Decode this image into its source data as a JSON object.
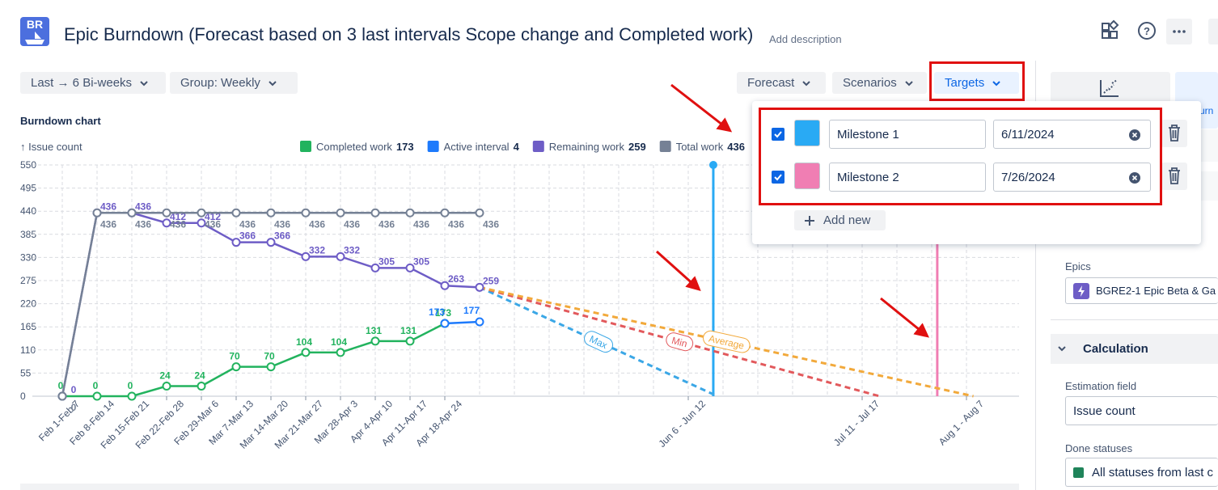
{
  "header": {
    "logo": "BR",
    "title": "Epic Burndown (Forecast based on 3 last intervals Scope change and Completed work)",
    "add_description": "Add description"
  },
  "toolbar": {
    "range": "Last → 6 Bi-weeks",
    "group": "Group: Weekly",
    "forecast": "Forecast",
    "scenarios": "Scenarios",
    "targets": "Targets"
  },
  "chart_data": {
    "type": "line",
    "title": "Burndown chart",
    "y_label": "↑ Issue count",
    "categories": [
      "Feb 1-Feb 7",
      "Feb 8-Feb 14",
      "Feb 15-Feb 21",
      "Feb 22-Feb 28",
      "Feb 29-Mar 6",
      "Mar 7-Mar 13",
      "Mar 14-Mar 20",
      "Mar 21-Mar 27",
      "Mar 28-Apr 3",
      "Apr 4-Apr 10",
      "Apr 11-Apr 17",
      "Apr 18-Apr 24",
      null,
      null,
      null,
      null,
      null,
      null,
      "Jun 6 - Jun 12",
      null,
      null,
      null,
      null,
      "Jul 11 - Jul 17",
      null,
      null,
      "Aug 1 - Aug 7"
    ],
    "ylim": [
      0,
      550
    ],
    "yticks": [
      0,
      55,
      110,
      165,
      220,
      275,
      330,
      385,
      440,
      495,
      550
    ],
    "grid": true,
    "series": [
      {
        "name": "Completed work",
        "color": "#22b35e",
        "total": 173,
        "values": [
          0,
          0,
          0,
          24,
          24,
          70,
          70,
          104,
          104,
          131,
          131,
          173,
          null,
          null,
          null,
          null,
          null,
          null,
          null,
          null,
          null,
          null,
          null,
          null,
          null,
          null,
          null
        ]
      },
      {
        "name": "Active interval",
        "color": "#1d7afc",
        "total": 4,
        "values": [
          null,
          null,
          null,
          null,
          null,
          null,
          null,
          null,
          null,
          null,
          null,
          173,
          177,
          null,
          null,
          null,
          null,
          null,
          null,
          null,
          null,
          null,
          null,
          null,
          null,
          null,
          null
        ]
      },
      {
        "name": "Remaining work",
        "color": "#6e5dc6",
        "total": 259,
        "values": [
          0,
          436,
          436,
          412,
          412,
          366,
          366,
          332,
          332,
          305,
          305,
          263,
          259,
          null,
          null,
          null,
          null,
          null,
          null,
          null,
          null,
          null,
          null,
          null,
          null,
          null,
          null
        ]
      },
      {
        "name": "Total work",
        "color": "#758195",
        "total": 436,
        "values": [
          0,
          436,
          436,
          436,
          436,
          436,
          436,
          436,
          436,
          436,
          436,
          436,
          436,
          null,
          null,
          null,
          null,
          null,
          null,
          null,
          null,
          null,
          null,
          null,
          null,
          null,
          null
        ]
      }
    ],
    "forecasts": [
      {
        "name": "Max",
        "color": "#3ba7e6",
        "x": [
          12,
          18.84
        ],
        "values": [
          259,
          0
        ]
      },
      {
        "name": "Min",
        "color": "#e2595c",
        "x": [
          12,
          23.5
        ],
        "values": [
          259,
          0
        ]
      },
      {
        "name": "Average",
        "color": "#f2a93b",
        "x": [
          12,
          26.2
        ],
        "values": [
          259,
          0
        ]
      }
    ],
    "markers": [
      18.72,
      25.16
    ]
  },
  "targets": {
    "milestones": [
      {
        "name": "Milestone 1",
        "date": "6/11/2024",
        "color": "#29aaf4"
      },
      {
        "name": "Milestone 2",
        "date": "7/26/2024",
        "color": "#f07eb3"
      }
    ],
    "add_new": "Add new"
  },
  "sidebar": {
    "tab_partial": "urn",
    "epics_label": "Epics",
    "epic": "BGRE2-1 Epic Beta & Ga",
    "calculation": "Calculation",
    "estimation_label": "Estimation field",
    "estimation": "Issue count",
    "done_label": "Done statuses",
    "done": "All statuses from last c"
  }
}
